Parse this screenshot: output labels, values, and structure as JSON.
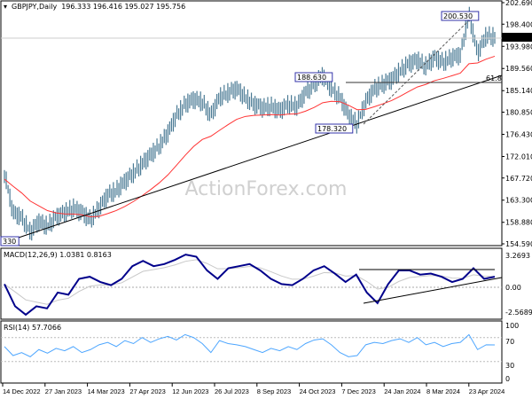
{
  "header": {
    "symbol": "GBPJPY,Daily",
    "ohlc": "196.333 196.416 195.027 195.756"
  },
  "watermark": "ActionForex.com",
  "colors": {
    "bars": "#4a7a94",
    "ma": "#ff3333",
    "macd": "#00008b",
    "signal": "#c8c8c8",
    "rsi": "#4da6ff",
    "label_border": "#3333aa"
  },
  "chart_data": [
    {
      "type": "line",
      "title": "GBPJPY,Daily",
      "series": [
        {
          "name": "close",
          "values": [
            168.7,
            160.8,
            159.9,
            156.9,
            159.0,
            158.1,
            159.9,
            160.8,
            161.7,
            160.8,
            159.4,
            161.7,
            164.3,
            165.2,
            167.0,
            168.7,
            170.5,
            172.3,
            174.1,
            176.7,
            180.2,
            182.4,
            183.4,
            182.9,
            180.2,
            183.8,
            184.7,
            185.5,
            183.8,
            182.4,
            181.7,
            182.0,
            181.1,
            182.4,
            182.0,
            184.7,
            186.4,
            188.2,
            185.5,
            183.8,
            180.2,
            178.5,
            182.9,
            185.5,
            186.4,
            187.3,
            189.1,
            190.5,
            191.2,
            190.0,
            191.7,
            190.8,
            191.7,
            192.3,
            200.2,
            192.6,
            196.1,
            195.8
          ]
        }
      ],
      "ylim": [
        154.59,
        202.69
      ],
      "yticks": [
        "202.690",
        "198.400",
        "193.980",
        "189.560",
        "185.140",
        "180.850",
        "176.430",
        "172.010",
        "167.720",
        "163.300",
        "158.880",
        "154.590"
      ],
      "current_price": "195.756",
      "annotations": {
        "high": "200.530",
        "swing_high": "188.630",
        "swing_low": "178.320",
        "low_left": "330",
        "fib": "61.8"
      }
    },
    {
      "type": "line",
      "title": "MACD(12,26,9) 1.0381 0.8163",
      "series": [
        {
          "name": "macd",
          "values": [
            0.3,
            -1.8,
            -2.6,
            -1.8,
            -2.0,
            -0.5,
            -0.7,
            0.8,
            1.0,
            0.5,
            0.2,
            0.8,
            2.0,
            2.5,
            2.0,
            2.2,
            2.6,
            3.1,
            2.9,
            1.6,
            0.8,
            1.8,
            2.0,
            2.2,
            1.6,
            0.8,
            0.3,
            0.2,
            0.8,
            1.6,
            2.0,
            1.3,
            0.5,
            1.2,
            -0.5,
            -1.5,
            0.3,
            1.6,
            1.6,
            1.2,
            1.3,
            1.0,
            0.5,
            0.8,
            1.8,
            0.8,
            1.0
          ]
        }
      ],
      "ylim": [
        -2.5689,
        3.2693
      ],
      "yticks": [
        "3.2693",
        "0.00",
        "-2.5689"
      ]
    },
    {
      "type": "line",
      "title": "RSI(14) 57.7066",
      "series": [
        {
          "name": "rsi",
          "values": [
            55,
            40,
            45,
            38,
            50,
            44,
            52,
            48,
            55,
            45,
            50,
            58,
            62,
            55,
            65,
            60,
            70,
            62,
            68,
            72,
            66,
            75,
            70,
            60,
            45,
            65,
            60,
            58,
            55,
            50,
            45,
            52,
            48,
            55,
            50,
            60,
            66,
            68,
            58,
            45,
            38,
            40,
            58,
            62,
            60,
            65,
            68,
            62,
            70,
            58,
            62,
            55,
            60,
            62,
            75,
            50,
            58,
            57.7
          ]
        }
      ],
      "ylim": [
        0,
        100
      ],
      "yticks": [
        "100",
        "70",
        "30",
        "0"
      ]
    }
  ],
  "xaxis": {
    "labels": [
      "14 Dec 2022",
      "27 Jan 2023",
      "14 Mar 2023",
      "27 Apr 2023",
      "12 Jun 2023",
      "26 Jul 2023",
      "8 Sep 2023",
      "24 Oct 2023",
      "7 Dec 2023",
      "24 Jan 2024",
      "8 Mar 2024",
      "23 Apr 2024"
    ]
  }
}
